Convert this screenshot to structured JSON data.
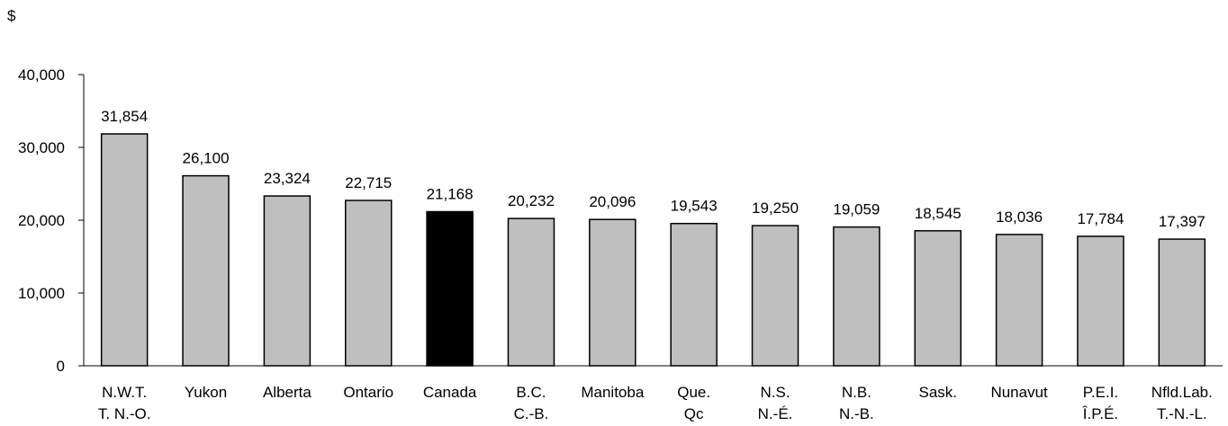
{
  "chart_data": {
    "type": "bar",
    "ylabel": "$",
    "ylim": [
      0,
      40000
    ],
    "yticks": [
      0,
      10000,
      20000,
      30000,
      40000
    ],
    "ytick_labels": [
      "0",
      "10,000",
      "20,000",
      "30,000",
      "40,000"
    ],
    "grid": false,
    "legend": "none",
    "colors": {
      "default": "#bfbfbf",
      "highlight": "#000000",
      "outline": "#000000"
    },
    "categories": [
      {
        "line1": "N.W.T.",
        "line2": "T. N.-O."
      },
      {
        "line1": "Yukon",
        "line2": ""
      },
      {
        "line1": "Alberta",
        "line2": ""
      },
      {
        "line1": "Ontario",
        "line2": ""
      },
      {
        "line1": "Canada",
        "line2": ""
      },
      {
        "line1": "B.C.",
        "line2": "C.-B."
      },
      {
        "line1": "Manitoba",
        "line2": ""
      },
      {
        "line1": "Que.",
        "line2": "Qc"
      },
      {
        "line1": "N.S.",
        "line2": "N.-É."
      },
      {
        "line1": "N.B.",
        "line2": "N.-B."
      },
      {
        "line1": "Sask.",
        "line2": ""
      },
      {
        "line1": "Nunavut",
        "line2": ""
      },
      {
        "line1": "P.E.I.",
        "line2": "Î.P.É."
      },
      {
        "line1": "Nfld.Lab.",
        "line2": "T.-N.-L."
      }
    ],
    "values": [
      31854,
      26100,
      23324,
      22715,
      21168,
      20232,
      20096,
      19543,
      19250,
      19059,
      18545,
      18036,
      17784,
      17397
    ],
    "value_labels": [
      "31,854",
      "26,100",
      "23,324",
      "22,715",
      "21,168",
      "20,232",
      "20,096",
      "19,543",
      "19,250",
      "19,059",
      "18,545",
      "18,036",
      "17,784",
      "17,397"
    ],
    "highlight_index": 4
  }
}
